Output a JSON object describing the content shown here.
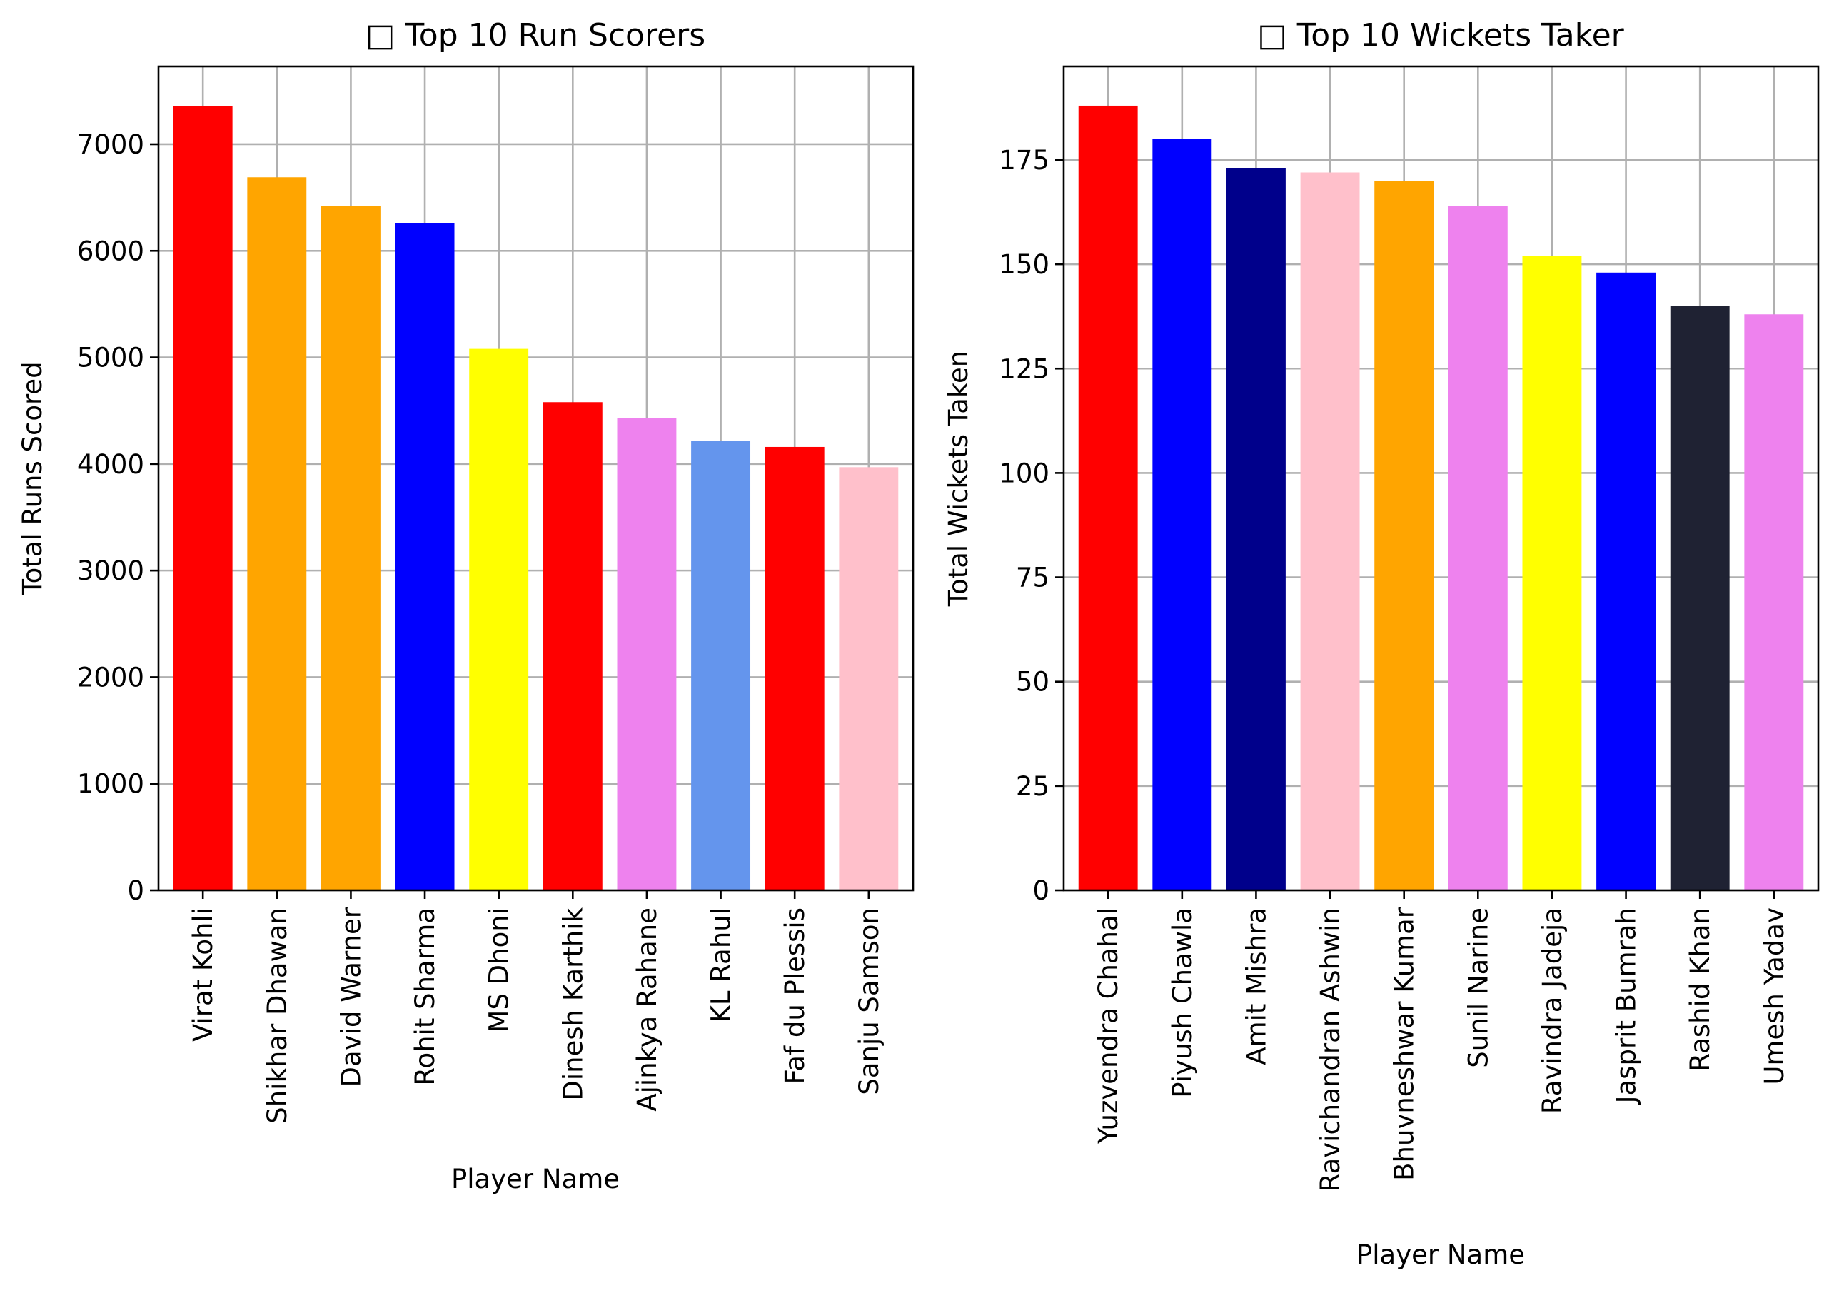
{
  "chart_data": [
    {
      "type": "bar",
      "title": "□ Top 10 Run Scorers",
      "xlabel": "Player Name",
      "ylabel": "Total Runs Scored",
      "categories": [
        "Virat Kohli",
        "Shikhar Dhawan",
        "David Warner",
        "Rohit Sharma",
        "MS Dhoni",
        "Dinesh Karthik",
        "Ajinkya Rahane",
        "KL Rahul",
        "Faf du Plessis",
        "Sanju Samson"
      ],
      "values": [
        7360,
        6690,
        6420,
        6260,
        5080,
        4580,
        4430,
        4220,
        4160,
        3970
      ],
      "colors": [
        "#ff0000",
        "#ffa500",
        "#ffa500",
        "#0000ff",
        "#ffff00",
        "#ff0000",
        "#ee82ee",
        "#6495ed",
        "#ff0000",
        "#ffc0cb"
      ],
      "ylim": [
        0,
        7730
      ],
      "yticks": [
        0,
        1000,
        2000,
        3000,
        4000,
        5000,
        6000,
        7000
      ],
      "grid": true
    },
    {
      "type": "bar",
      "title": "□ Top 10 Wickets Taker",
      "xlabel": "Player Name",
      "ylabel": "Total Wickets Taken",
      "categories": [
        "Yuzvendra Chahal",
        "Piyush Chawla",
        "Amit Mishra",
        "Ravichandran Ashwin",
        "Bhuvneshwar Kumar",
        "Sunil Narine",
        "Ravindra Jadeja",
        "Jasprit Bumrah",
        "Rashid Khan",
        "Umesh Yadav"
      ],
      "values": [
        188,
        180,
        173,
        172,
        170,
        164,
        152,
        148,
        140,
        138
      ],
      "colors": [
        "#ff0000",
        "#0000ff",
        "#00008b",
        "#ffc0cb",
        "#ffa500",
        "#ee82ee",
        "#ffff00",
        "#0000ff",
        "#1f2233",
        "#ee82ee"
      ],
      "ylim": [
        0,
        197.4
      ],
      "yticks": [
        0,
        25,
        50,
        75,
        100,
        125,
        150,
        175
      ],
      "grid": true
    }
  ]
}
